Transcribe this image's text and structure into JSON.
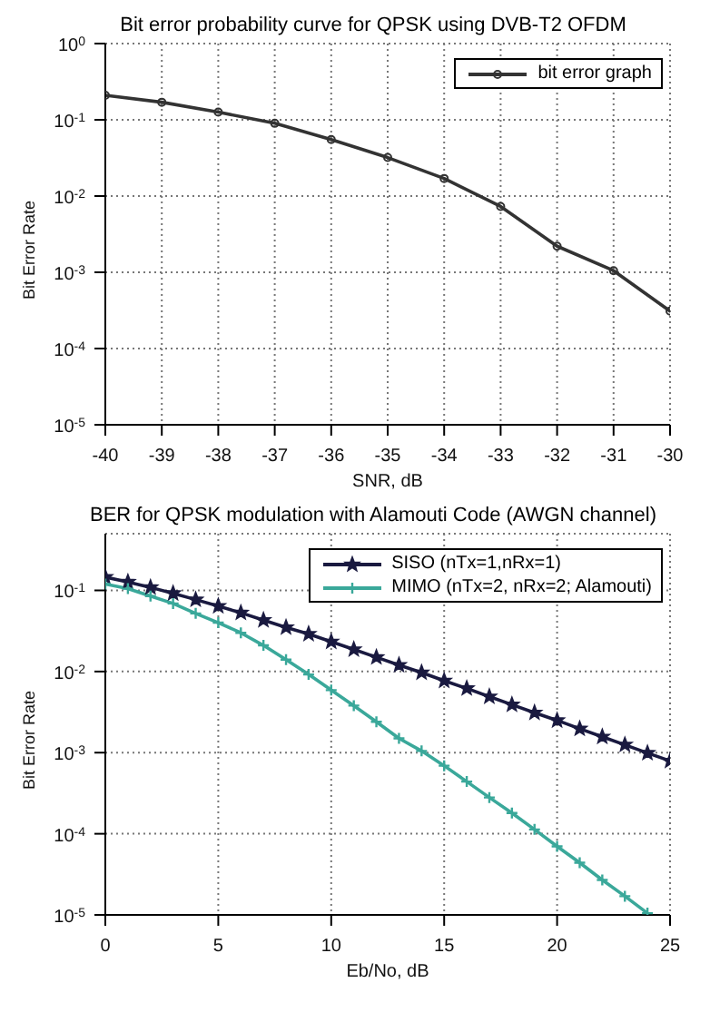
{
  "chart_data": [
    {
      "type": "line",
      "title": "Bit error probability curve for QPSK using DVB-T2 OFDM",
      "xlabel": "SNR, dB",
      "ylabel": "Bit Error Rate",
      "log": "y",
      "grid": true,
      "legend": "top right",
      "line_style": "solid",
      "x": [
        -40,
        -39,
        -38,
        -37,
        -36,
        -35,
        -34,
        -33,
        -32,
        -31,
        -30
      ],
      "series": [
        {
          "name": "bit error graph",
          "color": "#333333",
          "marker": "circle",
          "values": [
            0.21,
            0.17,
            0.126,
            0.09,
            0.055,
            0.032,
            0.017,
            0.0073,
            0.0022,
            0.00105,
            0.00031
          ]
        }
      ],
      "xlim": [
        -40,
        -30
      ],
      "xticks": [
        -40,
        -39,
        -38,
        -37,
        -36,
        -35,
        -34,
        -33,
        -32,
        -31,
        -30
      ],
      "ylim": [
        1e-05,
        1
      ],
      "yticks": [
        {
          "value": 1e-05,
          "label": "10$^{-5}$"
        },
        {
          "value": 0.0001,
          "label": "10$^{-4}$"
        },
        {
          "value": 0.001,
          "label": "10$^{-3}$"
        },
        {
          "value": 0.01,
          "label": "10$^{-2}$"
        },
        {
          "value": 0.1,
          "label": "10$^{-1}$"
        },
        {
          "value": 1,
          "label": "10$^{0}$"
        }
      ]
    },
    {
      "type": "line",
      "title": "BER for QPSK modulation with Alamouti Code (AWGN channel)",
      "xlabel": "Eb/No, dB",
      "ylabel": "Bit Error Rate",
      "log": "y",
      "grid": true,
      "legend": "top right",
      "line_style": "solid",
      "x": [
        0,
        1,
        2,
        3,
        4,
        5,
        6,
        7,
        8,
        9,
        10,
        11,
        12,
        13,
        14,
        15,
        16,
        17,
        18,
        19,
        20,
        21,
        22,
        23,
        24,
        25
      ],
      "series": [
        {
          "name": "SISO (nTx=1,nRx=1)",
          "color": "#1a1a40",
          "marker": "star",
          "values": [
            0.146,
            0.127,
            0.109,
            0.092,
            0.077,
            0.064,
            0.053,
            0.043,
            0.035,
            0.029,
            0.0233,
            0.0187,
            0.015,
            0.012,
            0.0097,
            0.0077,
            0.0062,
            0.0049,
            0.0039,
            0.0031,
            0.0025,
            0.00197,
            0.00157,
            0.00125,
            0.00099,
            0.00079
          ]
        },
        {
          "name": "MIMO (nTx=2, nRx=2; Alamouti)",
          "color": "#3aa89a",
          "marker": "cross",
          "x": [
            0,
            1,
            2,
            3,
            4,
            5,
            6,
            7,
            8,
            9,
            10,
            11,
            12,
            13,
            14,
            15,
            16,
            17,
            18,
            19,
            20,
            21,
            22,
            23,
            24
          ],
          "values": [
            0.12,
            0.105,
            0.085,
            0.069,
            0.052,
            0.04,
            0.03,
            0.021,
            0.014,
            0.0092,
            0.0059,
            0.0038,
            0.0024,
            0.0015,
            0.00105,
            0.00069,
            0.00044,
            0.00028,
            0.00018,
            0.000113,
            7e-05,
            4.4e-05,
            2.7e-05,
            1.7e-05,
            1.05e-05
          ]
        }
      ],
      "xlim": [
        0,
        25
      ],
      "xticks": [
        0,
        5,
        10,
        15,
        20,
        25
      ],
      "ylim": [
        1e-05,
        0.5
      ],
      "yticks": [
        {
          "value": 1e-05,
          "label": "10$^{-5}$"
        },
        {
          "value": 0.0001,
          "label": "10$^{-4}$"
        },
        {
          "value": 0.001,
          "label": "10$^{-3}$"
        },
        {
          "value": 0.01,
          "label": "10$^{-2}$"
        },
        {
          "value": 0.1,
          "label": "10$^{-1}$"
        }
      ]
    }
  ]
}
